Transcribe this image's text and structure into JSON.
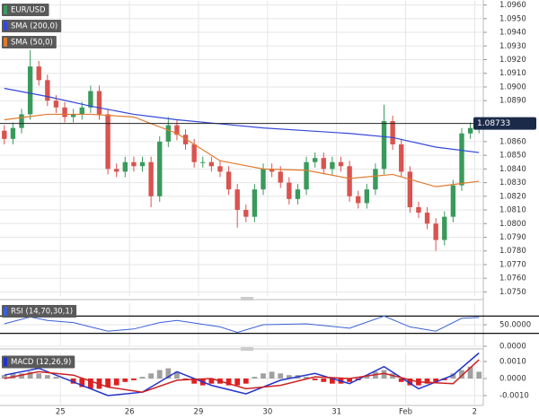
{
  "chart_data": [
    {
      "type": "candlestick",
      "series": [
        {
          "name": "EUR/USD",
          "up_color": "#3a9a5c",
          "down_color": "#d9534f",
          "open": [
            1.0868,
            1.0862,
            1.087,
            1.088,
            1.0915,
            1.0905,
            1.089,
            1.0885,
            1.0878,
            1.088,
            1.0885,
            1.0897,
            1.088,
            1.084,
            1.0838,
            1.0845,
            1.0842,
            1.0845,
            1.082,
            1.086,
            1.0872,
            1.0865,
            1.0858,
            1.0845,
            1.0845,
            1.0842,
            1.0838,
            1.0825,
            1.081,
            1.0805,
            1.0825,
            1.084,
            1.0838,
            1.083,
            1.0818,
            1.0825,
            1.0845,
            1.0848,
            1.084,
            1.0845,
            1.0842,
            1.082,
            1.0815,
            1.0825,
            1.084,
            1.0875,
            1.0858,
            1.0838,
            1.0812,
            1.0808,
            1.08,
            1.0788,
            1.0805,
            1.0828,
            1.0866,
            1.087
          ],
          "high": [
            1.0872,
            1.0874,
            1.0884,
            1.0927,
            1.0919,
            1.0909,
            1.0894,
            1.0889,
            1.0884,
            1.0889,
            1.0901,
            1.0901,
            1.0884,
            1.0844,
            1.0849,
            1.0849,
            1.0849,
            1.0849,
            1.0864,
            1.0878,
            1.0876,
            1.0869,
            1.0862,
            1.0849,
            1.0849,
            1.0846,
            1.0842,
            1.0829,
            1.0814,
            1.0829,
            1.0844,
            1.0844,
            1.0842,
            1.0834,
            1.0829,
            1.0849,
            1.0852,
            1.0852,
            1.0849,
            1.0849,
            1.0846,
            1.0824,
            1.0829,
            1.0844,
            1.0887,
            1.0879,
            1.0862,
            1.0842,
            1.0816,
            1.0812,
            1.0804,
            1.0809,
            1.0832,
            1.087,
            1.0874,
            1.0877
          ],
          "low": [
            1.0858,
            1.0858,
            1.0866,
            1.0876,
            1.0901,
            1.0886,
            1.0881,
            1.0874,
            1.0874,
            1.0876,
            1.0881,
            1.0876,
            1.0836,
            1.0834,
            1.0834,
            1.0838,
            1.0838,
            1.0812,
            1.0816,
            1.0856,
            1.0861,
            1.0854,
            1.0841,
            1.0841,
            1.0838,
            1.0834,
            1.0821,
            1.0797,
            1.0801,
            1.0801,
            1.0821,
            1.0834,
            1.0826,
            1.0814,
            1.0814,
            1.0821,
            1.0841,
            1.0836,
            1.0836,
            1.0838,
            1.0816,
            1.0811,
            1.0811,
            1.0821,
            1.0836,
            1.0854,
            1.0834,
            1.0808,
            1.0804,
            1.0796,
            1.078,
            1.0784,
            1.0801,
            1.0824,
            1.0862,
            1.0866
          ],
          "close": [
            1.0862,
            1.087,
            1.088,
            1.0915,
            1.0905,
            1.089,
            1.0885,
            1.0878,
            1.088,
            1.0885,
            1.0897,
            1.088,
            1.084,
            1.0838,
            1.0845,
            1.0842,
            1.0845,
            1.082,
            1.086,
            1.0872,
            1.0865,
            1.0858,
            1.0845,
            1.0845,
            1.0842,
            1.0838,
            1.0825,
            1.081,
            1.0805,
            1.0825,
            1.084,
            1.0838,
            1.083,
            1.0818,
            1.0825,
            1.0845,
            1.0848,
            1.084,
            1.0845,
            1.0842,
            1.082,
            1.0815,
            1.0825,
            1.084,
            1.0875,
            1.0858,
            1.0838,
            1.0812,
            1.0808,
            1.08,
            1.0788,
            1.0805,
            1.0828,
            1.0866,
            1.087,
            1.0873
          ]
        }
      ],
      "overlays": [
        {
          "name": "SMA (200,0)",
          "color": "#3447d8",
          "x": [
            0,
            5,
            10,
            15,
            20,
            25,
            30,
            35,
            40,
            45,
            50,
            55
          ],
          "values": [
            1.0899,
            1.0893,
            1.0886,
            1.088,
            1.0876,
            1.0873,
            1.087,
            1.0868,
            1.0866,
            1.0863,
            1.0856,
            1.0852
          ]
        },
        {
          "name": "SMA (50,0)",
          "color": "#e07a2e",
          "x": [
            0,
            5,
            10,
            15,
            20,
            25,
            30,
            35,
            40,
            45,
            50,
            55
          ],
          "values": [
            1.0876,
            1.088,
            1.088,
            1.0878,
            1.0866,
            1.0846,
            1.084,
            1.0839,
            1.0833,
            1.0836,
            1.0827,
            1.0831
          ]
        }
      ],
      "last_price": 1.08733,
      "xlim": [
        -0.5,
        55.5
      ],
      "xticks": [
        {
          "value": 6.5,
          "label": "25"
        },
        {
          "value": 14.5,
          "label": "26"
        },
        {
          "value": 22.5,
          "label": "29"
        },
        {
          "value": 30.5,
          "label": "30"
        },
        {
          "value": 38.5,
          "label": "31"
        },
        {
          "value": 46.5,
          "label": "Feb"
        },
        {
          "value": 54.5,
          "label": "2"
        }
      ],
      "ylim": [
        1.0747,
        1.0963
      ],
      "yticks": [
        {
          "value": 1.075,
          "label": "1.0750"
        },
        {
          "value": 1.076,
          "label": "1.0760"
        },
        {
          "value": 1.077,
          "label": "1.0770"
        },
        {
          "value": 1.078,
          "label": "1.0780"
        },
        {
          "value": 1.079,
          "label": "1.0790"
        },
        {
          "value": 1.08,
          "label": "1.0800"
        },
        {
          "value": 1.081,
          "label": "1.0810"
        },
        {
          "value": 1.082,
          "label": "1.0820"
        },
        {
          "value": 1.083,
          "label": "1.0830"
        },
        {
          "value": 1.084,
          "label": "1.0840"
        },
        {
          "value": 1.085,
          "label": "1.0850"
        },
        {
          "value": 1.086,
          "label": "1.0860"
        },
        {
          "value": 1.089,
          "label": "1.0890"
        },
        {
          "value": 1.09,
          "label": "1.0900"
        },
        {
          "value": 1.091,
          "label": "1.0910"
        },
        {
          "value": 1.092,
          "label": "1.0920"
        },
        {
          "value": 1.093,
          "label": "1.0930"
        },
        {
          "value": 1.094,
          "label": "1.0940"
        },
        {
          "value": 1.095,
          "label": "1.0950"
        },
        {
          "value": 1.096,
          "label": "1.0960"
        }
      ]
    },
    {
      "type": "line",
      "series": [
        {
          "name": "RSI (14,70,30,1)",
          "color": "#3a5fd6",
          "x": [
            0,
            3,
            5,
            8,
            12,
            15,
            18,
            20,
            25,
            27,
            30,
            35,
            40,
            44,
            47,
            50,
            53,
            55
          ],
          "values": [
            52,
            68,
            60,
            55,
            35,
            40,
            55,
            60,
            45,
            32,
            50,
            52,
            42,
            70,
            45,
            35,
            65,
            67
          ]
        }
      ],
      "levels": [
        70,
        30
      ],
      "ylim": [
        0,
        100
      ],
      "yticks": [
        {
          "value": 50,
          "label": "50.0000"
        },
        {
          "value": 0,
          "label": "0.0000"
        }
      ]
    },
    {
      "type": "macd",
      "legend": "MACD (12,26,9)",
      "histogram": [
        0.0002,
        0.0003,
        0.0003,
        0.0004,
        0.0003,
        0.0002,
        0.0001,
        0.0,
        -0.0003,
        -0.0005,
        -0.0006,
        -0.0006,
        -0.0005,
        -0.0004,
        -0.0002,
        -0.0001,
        0.0001,
        0.0003,
        0.0005,
        0.0006,
        0.0004,
        -0.0001,
        -0.0003,
        -0.0004,
        -0.0003,
        -0.0003,
        -0.0004,
        -0.0004,
        -0.0003,
        0.0001,
        0.0003,
        0.0004,
        0.0003,
        0.0002,
        0.0002,
        0.0001,
        -0.0001,
        -0.0002,
        -0.0003,
        -0.0003,
        -0.0002,
        -0.0001,
        0.0002,
        0.0004,
        0.0005,
        0.0003,
        -0.0002,
        -0.0004,
        -0.0004,
        -0.0003,
        -0.0002,
        -0.0001,
        0.0003,
        0.0005,
        0.0007,
        0.0004
      ],
      "up_color": "#a0a0a0",
      "down_color": "#e02020",
      "series": [
        {
          "color": "#2233cc",
          "x": [
            0,
            4,
            8,
            12,
            16,
            20,
            24,
            28,
            32,
            36,
            40,
            44,
            48,
            52,
            55
          ],
          "values": [
            0.0002,
            0.0006,
            -0.0002,
            -0.001,
            -0.0008,
            0.0004,
            -0.0004,
            -0.0009,
            -0.0001,
            0.0003,
            -0.0003,
            0.0007,
            -0.0006,
            0.0002,
            0.0015
          ]
        },
        {
          "color": "#cc2222",
          "x": [
            0,
            4,
            8,
            12,
            16,
            20,
            24,
            28,
            32,
            36,
            40,
            44,
            48,
            52,
            55
          ],
          "values": [
            0.0,
            0.0004,
            0.0002,
            -0.0005,
            -0.0008,
            -0.0001,
            0.0,
            -0.0006,
            -0.0004,
            0.0001,
            0.0,
            0.0003,
            -0.0002,
            -0.0003,
            0.0011
          ]
        }
      ],
      "ylim": [
        -0.0015,
        0.0015
      ],
      "yticks": [
        {
          "value": 0.001,
          "label": "0.0010"
        },
        {
          "value": 0,
          "label": "0.0000"
        },
        {
          "value": -0.001,
          "label": "-0.0010"
        }
      ]
    }
  ]
}
